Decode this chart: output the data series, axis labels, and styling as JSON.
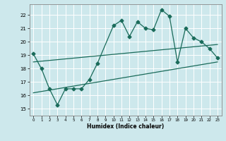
{
  "xlabel": "Humidex (Indice chaleur)",
  "ylabel": "",
  "xlim": [
    -0.5,
    23.5
  ],
  "ylim": [
    14.5,
    22.8
  ],
  "xticks": [
    0,
    1,
    2,
    3,
    4,
    5,
    6,
    7,
    8,
    9,
    10,
    11,
    12,
    13,
    14,
    15,
    16,
    17,
    18,
    19,
    20,
    21,
    22,
    23
  ],
  "yticks": [
    15,
    16,
    17,
    18,
    19,
    20,
    21,
    22
  ],
  "bg_color": "#cde8ec",
  "line_color": "#1a6b5a",
  "grid_color": "#ffffff",
  "line1_x": [
    0,
    1,
    2,
    3,
    4,
    5,
    6,
    7,
    8,
    10,
    11,
    12,
    13,
    14,
    15,
    16,
    17,
    18,
    19,
    20,
    21,
    22,
    23
  ],
  "line1_y": [
    19.1,
    18.0,
    16.5,
    15.3,
    16.5,
    16.5,
    16.5,
    17.2,
    18.4,
    21.2,
    21.6,
    20.4,
    21.5,
    21.0,
    20.9,
    22.4,
    21.9,
    18.5,
    21.0,
    20.3,
    20.0,
    19.5,
    18.8
  ],
  "line2_x": [
    0,
    23
  ],
  "line2_y": [
    18.5,
    19.8
  ],
  "line3_x": [
    0,
    23
  ],
  "line3_y": [
    16.2,
    18.5
  ],
  "markersize": 2.5,
  "linewidth": 0.9
}
